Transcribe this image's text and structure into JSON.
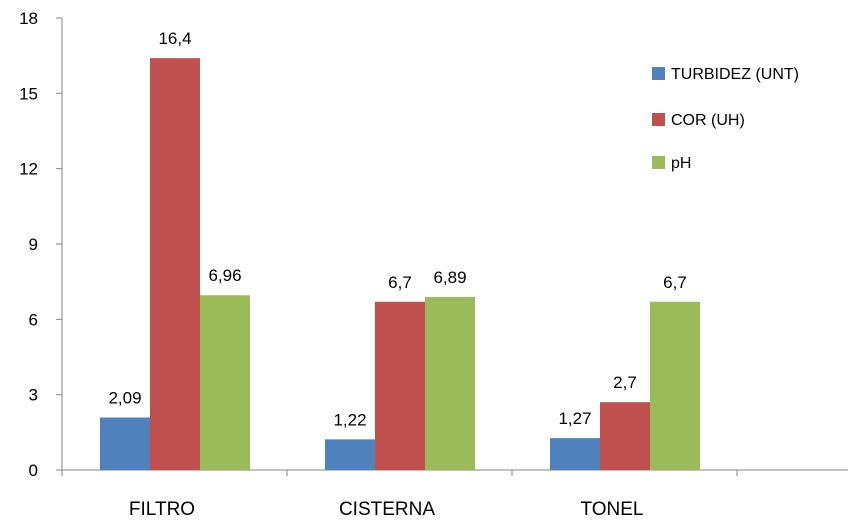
{
  "chart_data": {
    "type": "bar",
    "categories": [
      "FILTRO",
      "CISTERNA",
      "TONEL"
    ],
    "series": [
      {
        "name": "TURBIDEZ (UNT)",
        "values": [
          2.09,
          1.22,
          1.27
        ],
        "labels": [
          "2,09",
          "1,22",
          "1,27"
        ],
        "color": "#4f81bd"
      },
      {
        "name": "COR (UH)",
        "values": [
          16.4,
          6.7,
          2.7
        ],
        "labels": [
          "16,4",
          "6,7",
          "2,7"
        ],
        "color": "#c0504d"
      },
      {
        "name": "pH",
        "values": [
          6.96,
          6.89,
          6.7
        ],
        "labels": [
          "6,96",
          "6,89",
          "6,7"
        ],
        "color": "#9bbb59"
      }
    ],
    "yticks": [
      0,
      3,
      6,
      9,
      12,
      15,
      18
    ],
    "ylim": [
      0,
      18
    ],
    "grid": false,
    "legend_position": "right"
  }
}
